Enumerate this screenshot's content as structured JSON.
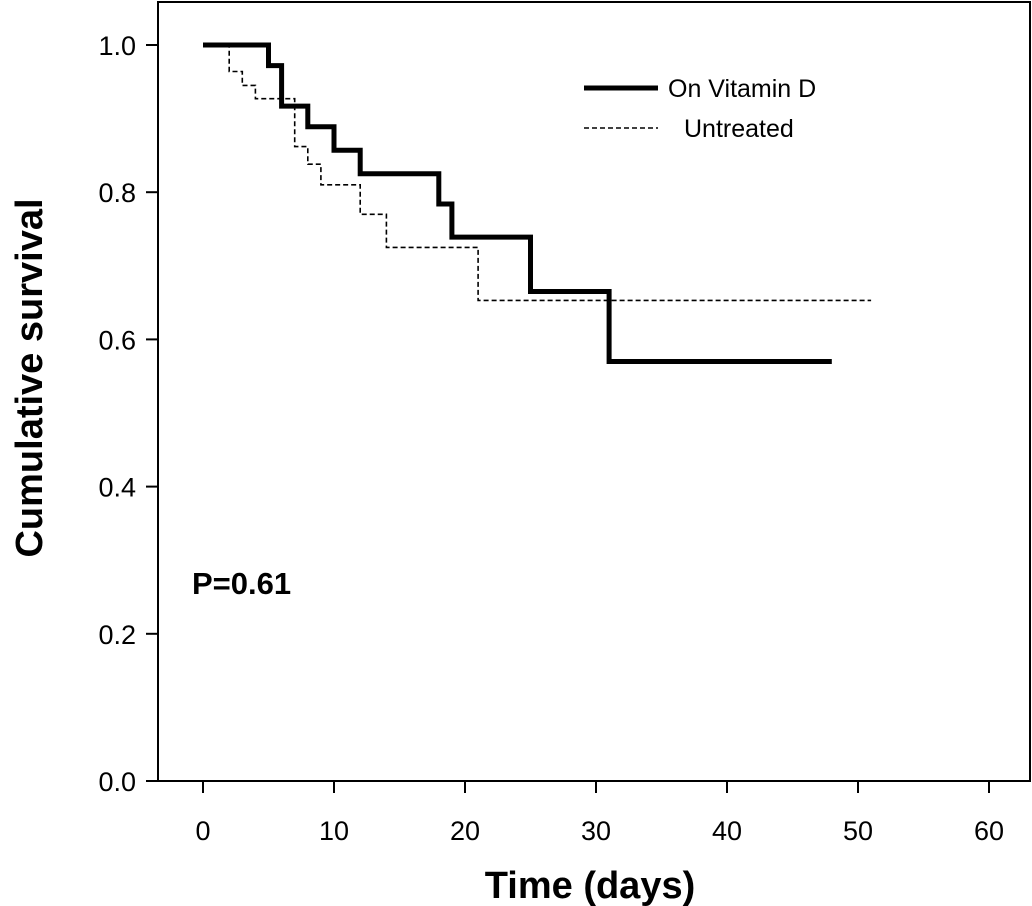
{
  "chart_data": {
    "type": "line",
    "title": "",
    "xlabel": "Time (days)",
    "ylabel": "Cumulative survival",
    "xlim": [
      0,
      60
    ],
    "ylim": [
      0,
      1
    ],
    "xticks": [
      0,
      10,
      20,
      30,
      40,
      50,
      60
    ],
    "yticks": [
      0.0,
      0.2,
      0.4,
      0.6,
      0.8,
      1.0
    ],
    "xtick_labels": [
      "0",
      "10",
      "20",
      "30",
      "40",
      "50",
      "60"
    ],
    "ytick_labels": [
      "0.0",
      "0.2",
      "0.4",
      "0.6",
      "0.8",
      "1.0"
    ],
    "grid": false,
    "legend_position": "top-right",
    "annotation": "P=0.61",
    "series": [
      {
        "name": "On Vitamin D",
        "style": "solid",
        "color": "#000000",
        "points": [
          [
            0,
            1.0
          ],
          [
            5,
            0.972
          ],
          [
            6,
            0.917
          ],
          [
            8,
            0.889
          ],
          [
            10,
            0.857
          ],
          [
            12,
            0.825
          ],
          [
            18,
            0.784
          ],
          [
            19,
            0.739
          ],
          [
            25,
            0.665
          ],
          [
            31,
            0.57
          ],
          [
            48,
            0.57
          ]
        ]
      },
      {
        "name": "Untreated",
        "style": "dashed",
        "color": "#000000",
        "points": [
          [
            0,
            1.0
          ],
          [
            2,
            0.964
          ],
          [
            3,
            0.945
          ],
          [
            4,
            0.927
          ],
          [
            7,
            0.862
          ],
          [
            8,
            0.838
          ],
          [
            9,
            0.81
          ],
          [
            12,
            0.77
          ],
          [
            14,
            0.725
          ],
          [
            21,
            0.653
          ],
          [
            51,
            0.653
          ]
        ]
      }
    ]
  }
}
